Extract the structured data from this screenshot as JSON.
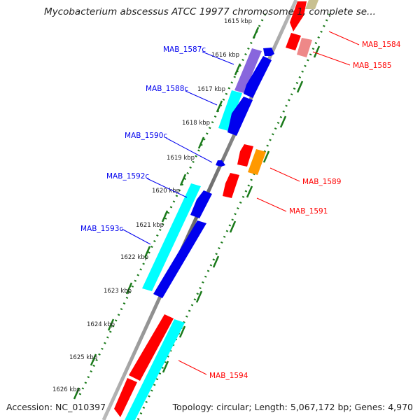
{
  "title": "Mycobacterium abscessus ATCC 19977 chromosome 1, complete se...",
  "footer": {
    "accession": "Accession: NC_010397",
    "stats": "Topology: circular; Length: 5,067,172 bp; Genes: 4,970"
  },
  "ticks": [
    "1615 kbp",
    "1616 kbp",
    "1617 kbp",
    "1618 kbp",
    "1619 kbp",
    "1620 kbp",
    "1621 kbp",
    "1622 kbp",
    "1623 kbp",
    "1624 kbp",
    "1625 kbp",
    "1626 kbp"
  ],
  "genes": [
    {
      "label": "MAB_1584",
      "strand": "forward",
      "color": "#ff0000"
    },
    {
      "label": "MAB_1585",
      "strand": "forward",
      "color": "#ff0000"
    },
    {
      "label": "MAB_1587c",
      "strand": "reverse",
      "color": "#0000ee"
    },
    {
      "label": "MAB_1588c",
      "strand": "reverse",
      "color": "#0000ee"
    },
    {
      "label": "MAB_1589",
      "strand": "forward",
      "color": "#ff0000"
    },
    {
      "label": "MAB_1590c",
      "strand": "reverse",
      "color": "#0000ee"
    },
    {
      "label": "MAB_1591",
      "strand": "forward",
      "color": "#ff0000"
    },
    {
      "label": "MAB_1592c",
      "strand": "reverse",
      "color": "#0000ee"
    },
    {
      "label": "MAB_1593c",
      "strand": "reverse",
      "color": "#0000ee"
    },
    {
      "label": "MAB_1594",
      "strand": "forward",
      "color": "#ff0000"
    }
  ],
  "colors": {
    "forward_cds": "#ff0000",
    "reverse_cds": "#0000ee",
    "forward_label": "#ff0000",
    "reverse_label": "#0000ee",
    "backbone": "#777777",
    "tick_dots": "#1a7a1a",
    "cyan_feature": "#00ffff",
    "purple_feature": "#8866dd",
    "orange_feature": "#ff9900",
    "pink_feature": "#ee8888",
    "khaki_feature": "#c8c090"
  }
}
